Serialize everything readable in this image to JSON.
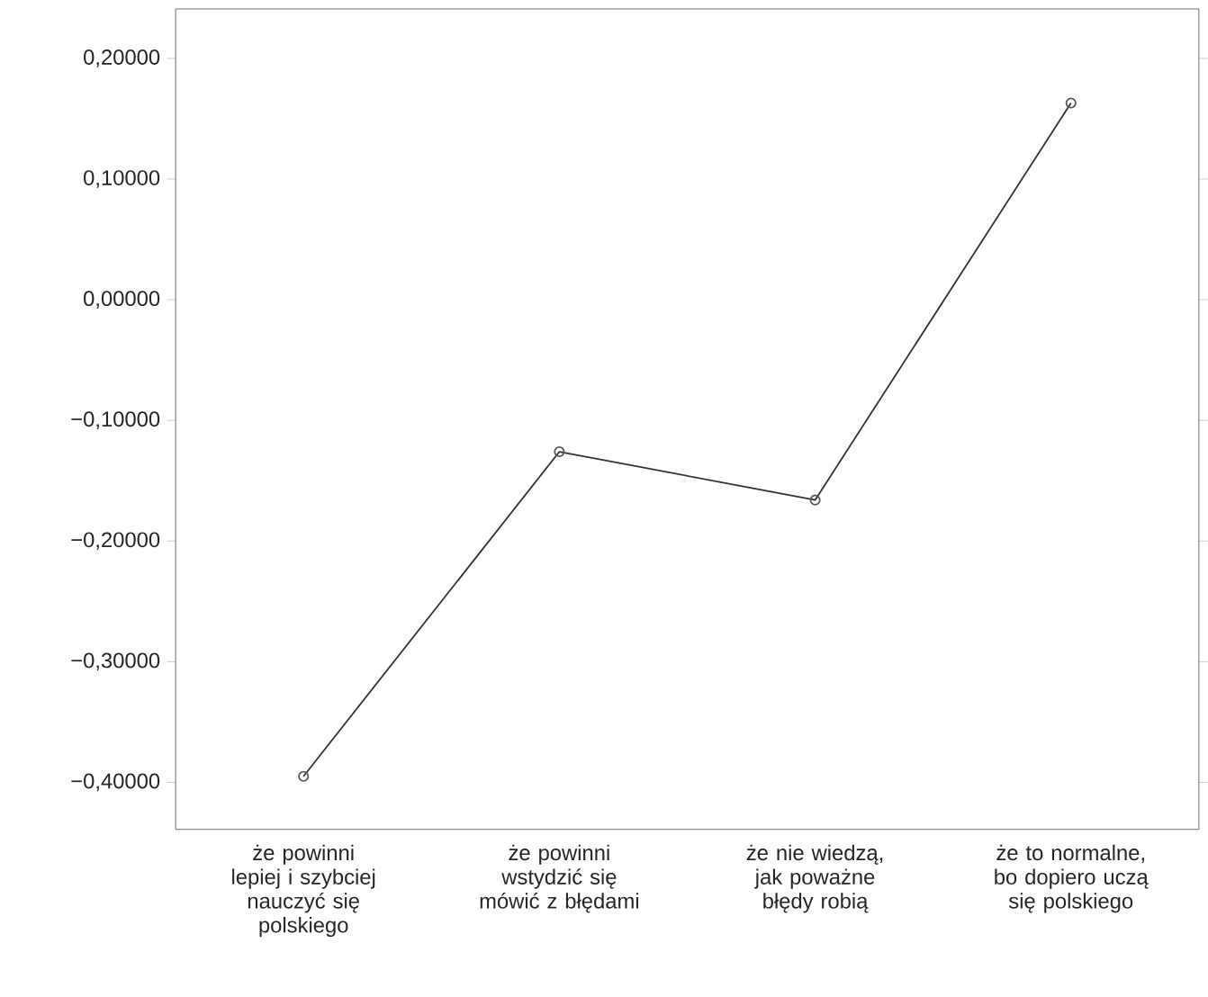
{
  "chart_data": {
    "type": "line",
    "categories": [
      "że powinni lepiej i szybciej nauczyć się polskiego",
      "że powinni wstydzić się mówić z błędami",
      "że nie wiedzą, jak poważne błędy robią",
      "że to normalne, bo dopiero uczą się polskiego"
    ],
    "series": [
      {
        "color": "#333333",
        "values": [
          -0.395,
          -0.126,
          -0.166,
          0.163
        ]
      }
    ],
    "ylim": [
      -0.439,
      0.241
    ],
    "yticks": [
      {
        "value": -0.4,
        "label": "−0,40000"
      },
      {
        "value": -0.3,
        "label": "−0,30000"
      },
      {
        "value": -0.2,
        "label": "−0,20000"
      },
      {
        "value": -0.1,
        "label": "−0,10000"
      },
      {
        "value": 0,
        "label": "0,00000"
      },
      {
        "value": 0.1,
        "label": "0,10000"
      },
      {
        "value": 0.2,
        "label": "0,20000"
      }
    ],
    "marker": "circle",
    "grid": false
  }
}
